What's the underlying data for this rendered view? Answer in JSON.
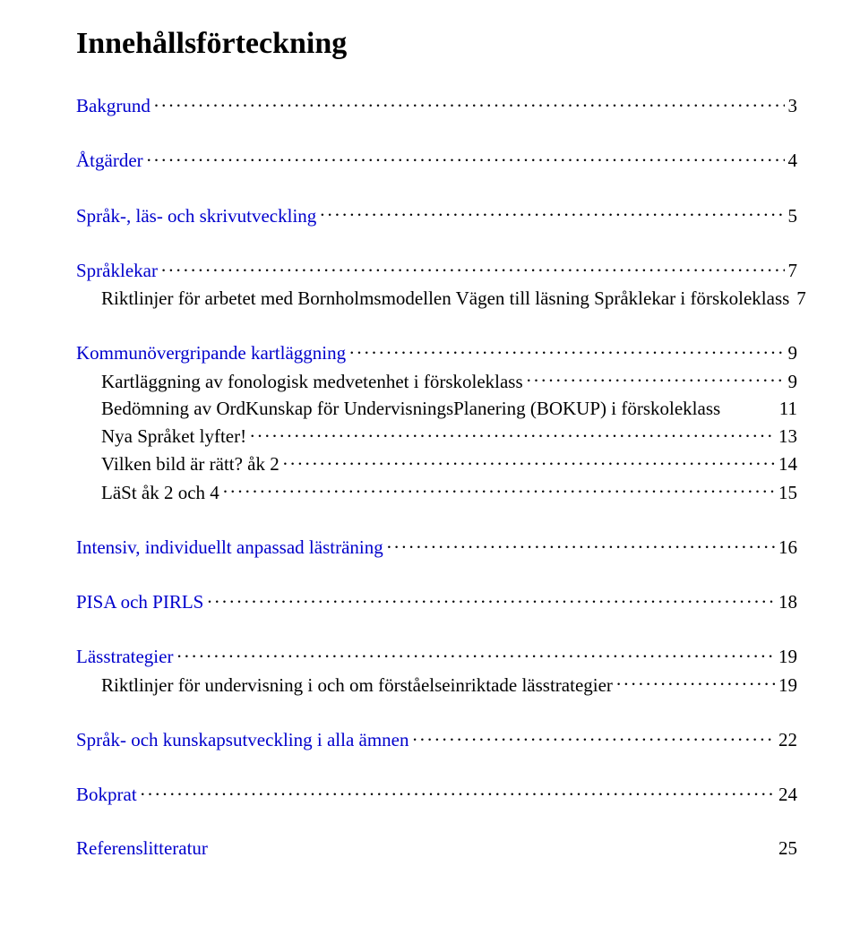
{
  "title": "Innehållsförteckning",
  "entries": [
    {
      "label": "Bakgrund",
      "page": "3",
      "level": 0,
      "blue": true,
      "first": true
    },
    {
      "label": "Åtgärder",
      "page": "4",
      "level": 0,
      "blue": true
    },
    {
      "label": "Språk-, läs- och skrivutveckling",
      "page": "5",
      "level": 0,
      "blue": true
    },
    {
      "label": "Språklekar",
      "page": "7",
      "level": 0,
      "blue": true
    },
    {
      "label": "Riktlinjer för arbetet med Bornholmsmodellen Vägen till läsning Språklekar i förskoleklass",
      "page": "7",
      "level": 1,
      "blue": false
    },
    {
      "label": "Kommunövergripande kartläggning",
      "page": "9",
      "level": 0,
      "blue": true
    },
    {
      "label": "Kartläggning av fonologisk medvetenhet i förskoleklass",
      "page": "9",
      "level": 1,
      "blue": false
    },
    {
      "label": "Bedömning av OrdKunskap för UndervisningsPlanering (BOKUP) i förskoleklass",
      "page": "11",
      "level": 1,
      "blue": false,
      "nodots": true
    },
    {
      "label": "Nya Språket lyfter!",
      "page": "13",
      "level": 1,
      "blue": false
    },
    {
      "label": "Vilken bild är rätt? åk 2",
      "page": "14",
      "level": 1,
      "blue": false
    },
    {
      "label": "LäSt åk 2 och 4",
      "page": "15",
      "level": 1,
      "blue": false
    },
    {
      "label": "Intensiv, individuellt anpassad lästräning",
      "page": "16",
      "level": 0,
      "blue": true
    },
    {
      "label": "PISA och PIRLS",
      "page": "18",
      "level": 0,
      "blue": true
    },
    {
      "label": "Lässtrategier",
      "page": "19",
      "level": 0,
      "blue": true
    },
    {
      "label": "Riktlinjer för undervisning i och om förståelseinriktade lässtrategier",
      "page": "19",
      "level": 1,
      "blue": false
    },
    {
      "label": "Språk- och kunskapsutveckling i alla ämnen",
      "page": "22",
      "level": 0,
      "blue": true
    },
    {
      "label": "Bokprat",
      "page": "24",
      "level": 0,
      "blue": true
    },
    {
      "label": "Referenslitteratur",
      "page": "25",
      "level": 0,
      "blue": true,
      "nodots": true,
      "nolead": true
    }
  ]
}
